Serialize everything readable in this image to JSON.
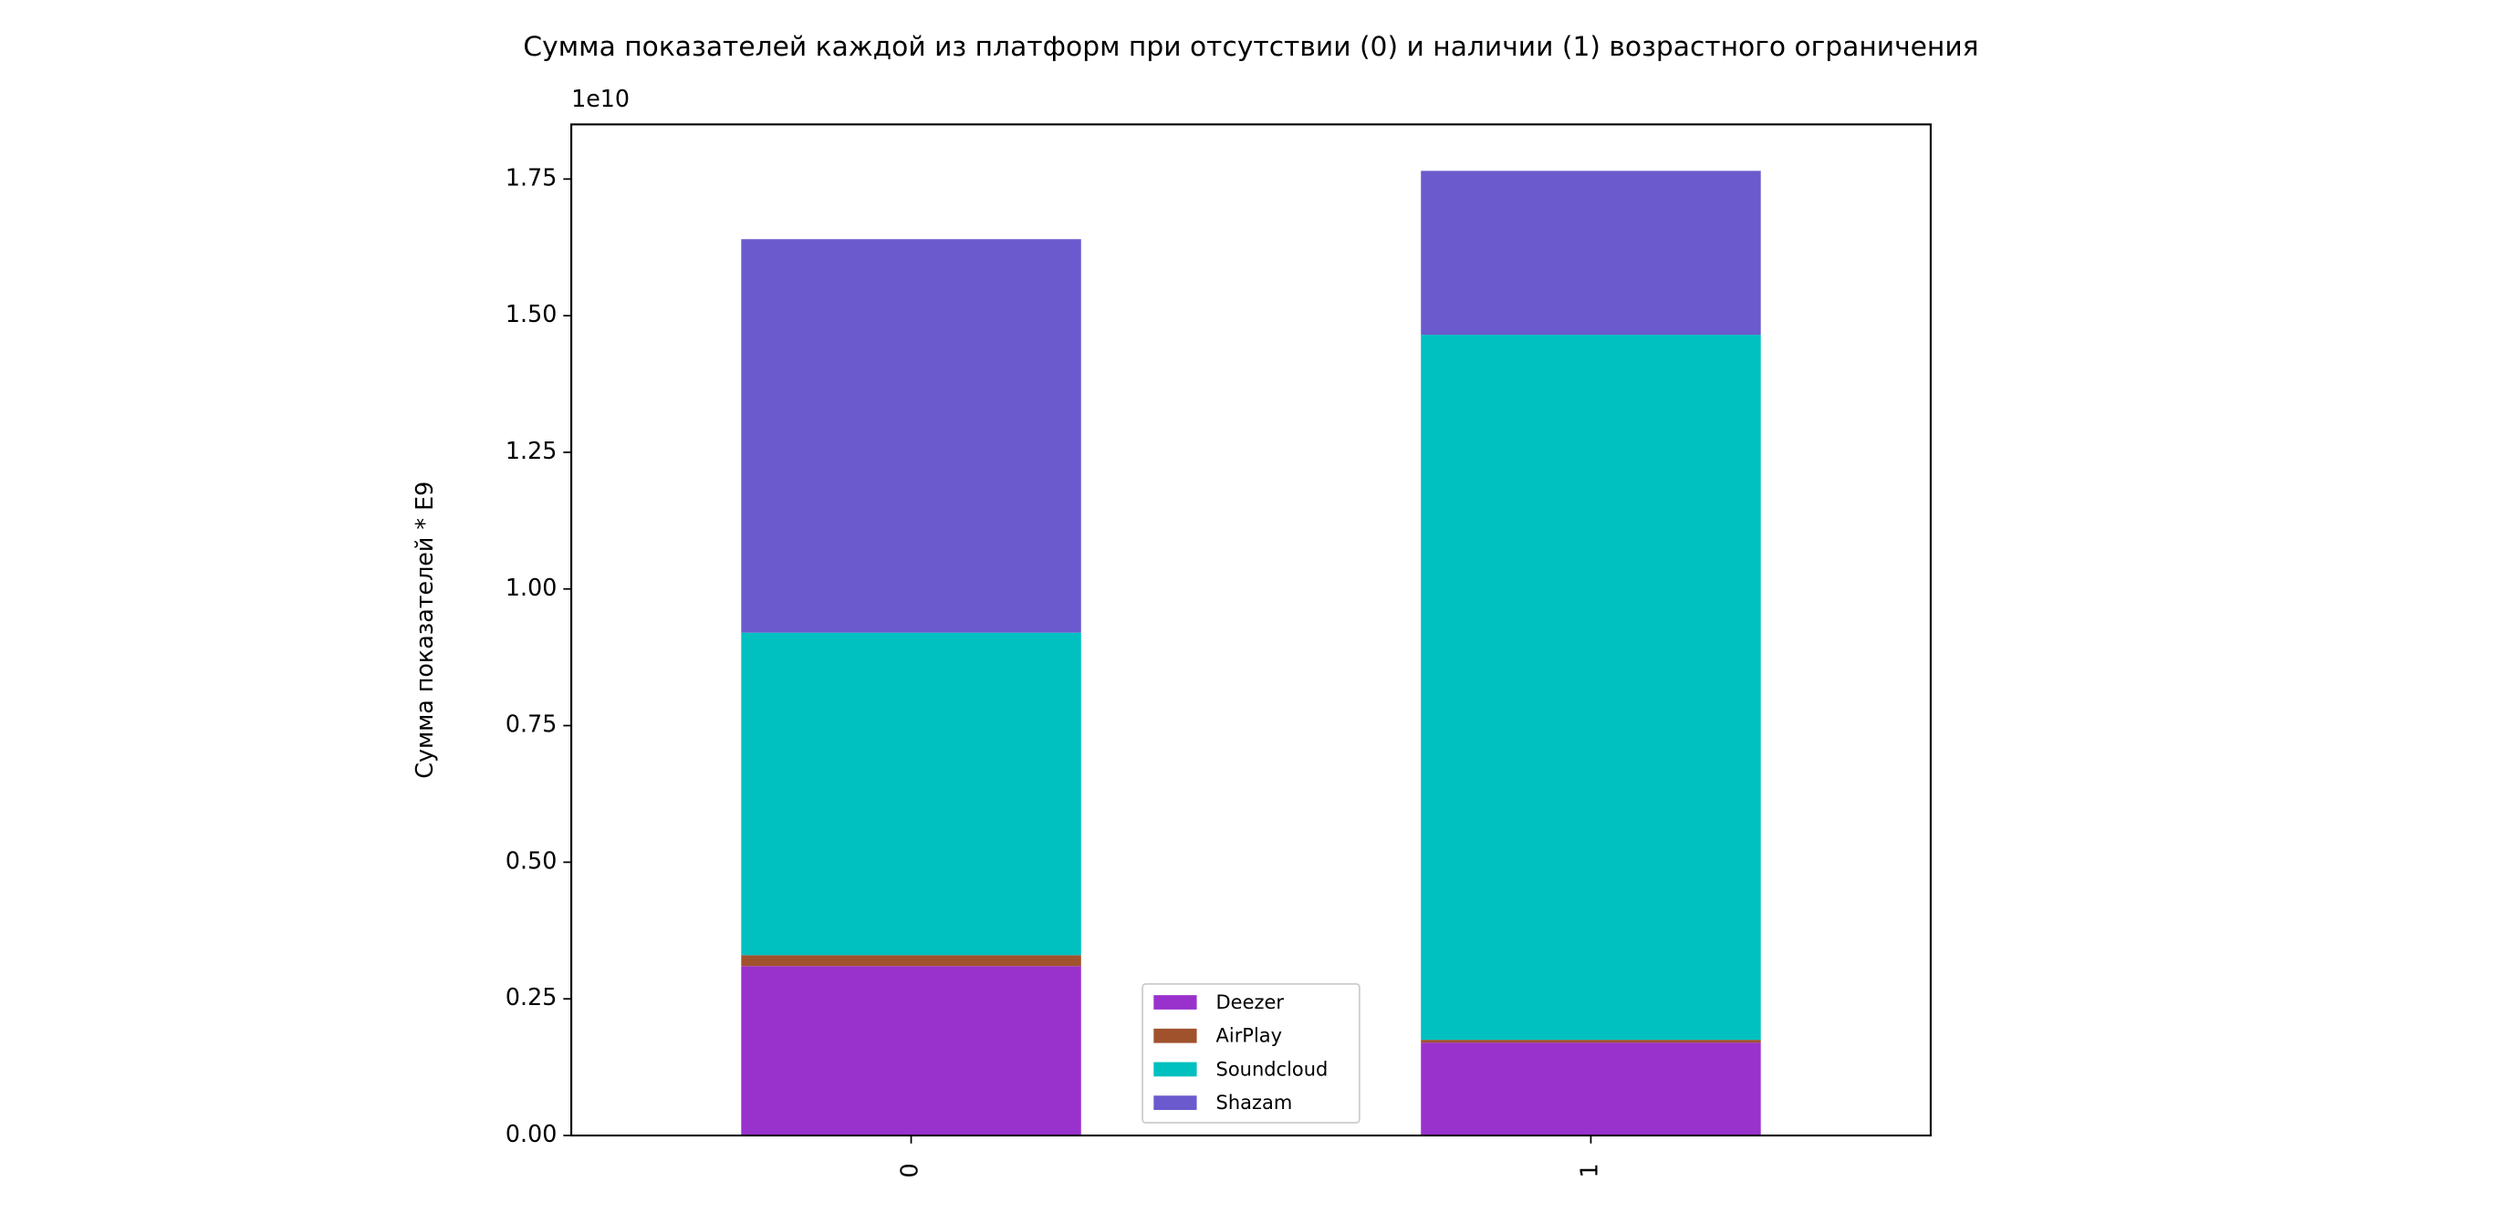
{
  "chart_data": {
    "type": "stacked_bar",
    "title": "Сумма показателей каждой из платформ при отсутствии (0) и наличии (1) возрастного ограничения",
    "y_label": "Сумма показателей * E9",
    "y_offset_text": "1e10",
    "categories": [
      "0",
      "1"
    ],
    "series": [
      {
        "name": "Deezer",
        "color": "#9932cc",
        "values": [
          0.31,
          0.17
        ]
      },
      {
        "name": "AirPlay",
        "color": "#a0522d",
        "values": [
          0.02,
          0.005
        ]
      },
      {
        "name": "Soundcloud",
        "color": "#00c0c0",
        "values": [
          0.59,
          1.29
        ]
      },
      {
        "name": "Shazam",
        "color": "#6a5acd",
        "values": [
          0.72,
          0.3
        ]
      }
    ],
    "ylim": [
      0,
      1.85
    ],
    "yticks": [
      {
        "value": 0,
        "label": "0.00"
      },
      {
        "value": 0.25,
        "label": "0.25"
      },
      {
        "value": 0.5,
        "label": "0.50"
      },
      {
        "value": 0.75,
        "label": "0.75"
      },
      {
        "value": 1,
        "label": "1.00"
      },
      {
        "value": 1.25,
        "label": "1.25"
      },
      {
        "value": 1.5,
        "label": "1.50"
      },
      {
        "value": 1.75,
        "label": "1.75"
      }
    ],
    "legend": "lower center"
  }
}
